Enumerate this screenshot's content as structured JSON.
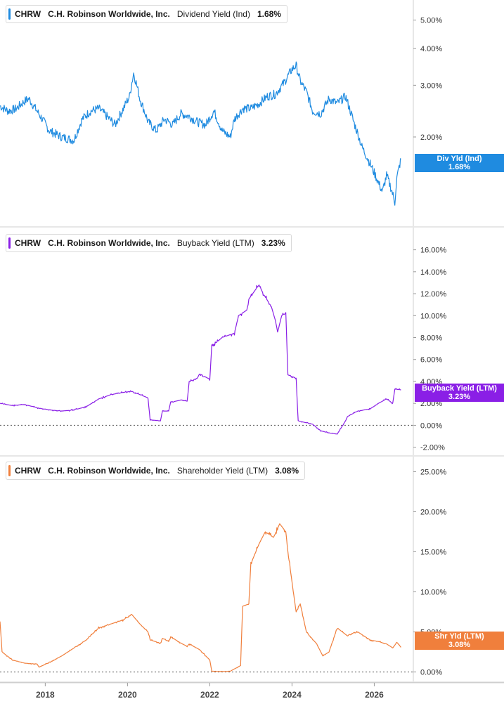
{
  "colors": {
    "dividend": "#1f8be0",
    "buyback": "#8a1fe6",
    "shareholder": "#f07f3c",
    "axis": "#cfcfcf"
  },
  "x_axis": {
    "ticks": [
      "2018",
      "2020",
      "2022",
      "2024",
      "2026"
    ]
  },
  "chart_data": [
    {
      "type": "line",
      "ticker": "CHRW",
      "company": "C.H. Robinson Worldwide, Inc.",
      "metric": "Dividend Yield (Ind)",
      "latest": "1.68%",
      "tag_label": "Div Yld (Ind)",
      "tag_value": "1.68%",
      "scale": "log",
      "ylim": [
        1.05,
        5.6
      ],
      "yticks": [
        5,
        4,
        3,
        2
      ],
      "ytick_labels": [
        "5.00%",
        "4.00%",
        "3.00%",
        "2.00%"
      ],
      "zero_line": false,
      "series": [
        {
          "x": [
            2016.9,
            2017.1,
            2017.3,
            2017.5,
            2017.6,
            2017.8,
            2018.1,
            2018.4,
            2018.7,
            2018.9,
            2019.1,
            2019.3,
            2019.5,
            2019.7,
            2019.9,
            2020.05,
            2020.15,
            2020.3,
            2020.5,
            2020.7,
            2020.9,
            2021.1,
            2021.3,
            2021.5,
            2021.7,
            2021.9,
            2022.1,
            2022.3,
            2022.5,
            2022.6,
            2022.8,
            2023.0,
            2023.2,
            2023.4,
            2023.6,
            2023.8,
            2024.0,
            2024.1,
            2024.2,
            2024.35,
            2024.5,
            2024.7,
            2024.9,
            2025.1,
            2025.3,
            2025.5,
            2025.7,
            2025.9,
            2026.1,
            2026.2,
            2026.3,
            2026.4,
            2026.5,
            2026.55,
            2026.65
          ],
          "y": [
            2.55,
            2.45,
            2.5,
            2.65,
            2.7,
            2.45,
            2.1,
            2.0,
            1.95,
            2.3,
            2.45,
            2.5,
            2.35,
            2.2,
            2.5,
            2.75,
            3.3,
            2.7,
            2.25,
            2.1,
            2.3,
            2.2,
            2.4,
            2.35,
            2.25,
            2.2,
            2.45,
            2.1,
            2.0,
            2.3,
            2.5,
            2.5,
            2.6,
            2.75,
            2.8,
            3.05,
            3.4,
            3.5,
            3.1,
            2.85,
            2.45,
            2.4,
            2.7,
            2.6,
            2.75,
            2.25,
            1.85,
            1.62,
            1.4,
            1.3,
            1.48,
            1.35,
            1.2,
            1.45,
            1.68
          ]
        }
      ]
    },
    {
      "type": "line",
      "ticker": "CHRW",
      "company": "C.H. Robinson Worldwide, Inc.",
      "metric": "Buyback Yield (LTM)",
      "latest": "3.23%",
      "tag_label": "Buyback Yield (LTM)",
      "tag_value": "3.23%",
      "scale": "linear",
      "ylim": [
        -2.6,
        17
      ],
      "yticks": [
        16,
        14,
        12,
        10,
        8,
        6,
        4,
        2,
        0,
        -2
      ],
      "ytick_labels": [
        "16.00%",
        "14.00%",
        "12.00%",
        "10.00%",
        "8.00%",
        "6.00%",
        "4.00%",
        "2.00%",
        "0.00%",
        "-2.00%"
      ],
      "zero_line": true,
      "series": [
        {
          "x": [
            2016.9,
            2017.2,
            2017.5,
            2017.8,
            2018.1,
            2018.4,
            2018.7,
            2019.0,
            2019.3,
            2019.6,
            2019.9,
            2020.1,
            2020.3,
            2020.5,
            2020.55,
            2020.8,
            2020.85,
            2021.0,
            2021.05,
            2021.3,
            2021.45,
            2021.5,
            2021.7,
            2021.75,
            2022.0,
            2022.05,
            2022.3,
            2022.6,
            2022.7,
            2022.9,
            2022.95,
            2023.1,
            2023.2,
            2023.3,
            2023.5,
            2023.6,
            2023.65,
            2023.75,
            2023.85,
            2023.9,
            2024.1,
            2024.15,
            2024.5,
            2024.7,
            2024.9,
            2025.1,
            2025.3,
            2025.35,
            2025.6,
            2025.9,
            2026.1,
            2026.3,
            2026.45,
            2026.5,
            2026.65
          ],
          "y": [
            2.0,
            1.8,
            1.9,
            1.6,
            1.4,
            1.3,
            1.4,
            1.7,
            2.4,
            2.8,
            3.0,
            3.1,
            2.8,
            2.5,
            0.5,
            0.4,
            1.3,
            1.3,
            2.1,
            2.3,
            2.2,
            4.0,
            4.3,
            4.7,
            4.2,
            7.2,
            8.0,
            8.4,
            10.0,
            10.5,
            11.5,
            12.3,
            12.8,
            12.0,
            10.8,
            9.5,
            8.5,
            10.0,
            10.2,
            4.6,
            4.3,
            0.4,
            0.1,
            -0.5,
            -0.7,
            -0.8,
            0.4,
            0.8,
            1.3,
            1.5,
            2.0,
            2.4,
            2.0,
            3.3,
            3.23
          ]
        }
      ]
    },
    {
      "type": "line",
      "ticker": "CHRW",
      "company": "C.H. Robinson Worldwide, Inc.",
      "metric": "Shareholder Yield (LTM)",
      "latest": "3.08%",
      "tag_label": "Shr Yld (LTM)",
      "tag_value": "3.08%",
      "scale": "linear",
      "ylim": [
        -1,
        26
      ],
      "yticks": [
        25,
        20,
        15,
        10,
        5,
        0
      ],
      "ytick_labels": [
        "25.00%",
        "20.00%",
        "15.00%",
        "10.00%",
        "5.00%",
        "0.00%"
      ],
      "zero_line": true,
      "series": [
        {
          "x": [
            2016.9,
            2016.95,
            2017.2,
            2017.5,
            2017.8,
            2017.85,
            2018.1,
            2018.4,
            2018.7,
            2019.0,
            2019.3,
            2019.6,
            2019.9,
            2020.1,
            2020.3,
            2020.5,
            2020.55,
            2020.8,
            2020.85,
            2021.0,
            2021.05,
            2021.3,
            2021.45,
            2021.5,
            2021.75,
            2022.0,
            2022.05,
            2022.3,
            2022.5,
            2022.75,
            2022.8,
            2022.95,
            2023.0,
            2023.2,
            2023.35,
            2023.55,
            2023.7,
            2023.85,
            2023.9,
            2024.1,
            2024.2,
            2024.35,
            2024.6,
            2024.75,
            2024.9,
            2025.1,
            2025.35,
            2025.6,
            2025.9,
            2026.1,
            2026.3,
            2026.45,
            2026.55,
            2026.65
          ],
          "y": [
            6.3,
            2.5,
            1.5,
            1.1,
            1.0,
            0.6,
            1.2,
            2.0,
            3.0,
            4.0,
            5.5,
            6.0,
            6.5,
            7.2,
            6.0,
            5.0,
            4.0,
            3.6,
            4.2,
            3.8,
            4.4,
            3.6,
            3.2,
            3.5,
            2.8,
            1.5,
            0.1,
            0.05,
            0.1,
            0.8,
            8.2,
            8.5,
            13.5,
            16.0,
            17.5,
            16.8,
            18.5,
            17.5,
            15.0,
            7.5,
            8.5,
            5.0,
            3.5,
            2.0,
            2.5,
            5.5,
            4.5,
            5.0,
            4.0,
            3.8,
            3.5,
            3.0,
            3.7,
            3.08
          ]
        }
      ]
    }
  ]
}
